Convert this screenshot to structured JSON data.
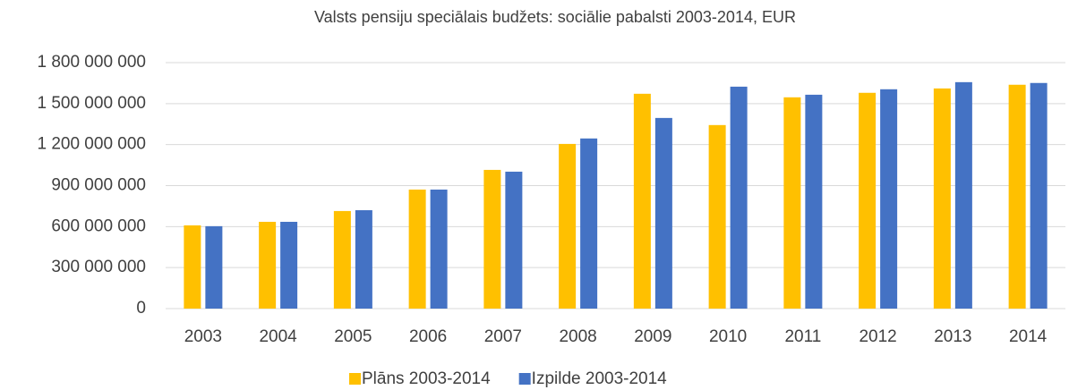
{
  "chart_data": {
    "type": "bar",
    "title": "Valsts pensiju speciālais budžets: sociālie pabalsti 2003-2014, EUR",
    "categories": [
      "2003",
      "2004",
      "2005",
      "2006",
      "2007",
      "2008",
      "2009",
      "2010",
      "2011",
      "2012",
      "2013",
      "2014"
    ],
    "series": [
      {
        "name": "Plāns 2003-2014",
        "color": "#ffc000",
        "values": [
          609000000,
          635000000,
          714000000,
          871000000,
          1015000000,
          1205000000,
          1572000000,
          1343000000,
          1546000000,
          1579000000,
          1611000000,
          1638000000
        ]
      },
      {
        "name": "Izpilde 2003-2014",
        "color": "#4472c4",
        "values": [
          603000000,
          635000000,
          720000000,
          871000000,
          1002000000,
          1245000000,
          1395000000,
          1624000000,
          1565000000,
          1605000000,
          1657000000,
          1651000000
        ]
      }
    ],
    "ylim": [
      0,
      1800000000
    ],
    "yticks": [
      0,
      {
        "value": 300000000,
        "label": "300 000 000"
      },
      {
        "value": 600000000,
        "label": "600 000 000"
      },
      {
        "value": 900000000,
        "label": "900 000 000"
      },
      {
        "value": 1200000000,
        "label": "1 200 000 000"
      },
      {
        "value": 1500000000,
        "label": "1 500 000 000"
      },
      {
        "value": 1800000000,
        "label": "1 800 000 000"
      }
    ],
    "grid": true,
    "legend": "bottom"
  }
}
